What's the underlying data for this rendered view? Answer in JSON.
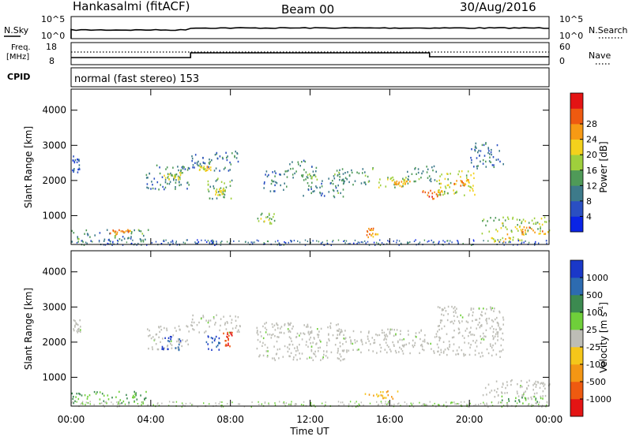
{
  "header": {
    "station": "Hankasalmi (fitACF)",
    "beam": "Beam 00",
    "date": "30/Aug/2016"
  },
  "status_panels": {
    "nsky_label": "N.Sky",
    "nsky_ticks": [
      "10^5",
      "10^0"
    ],
    "nsearch_label": "N.Search",
    "nsearch_ticks": [
      "10^5",
      "10^0"
    ],
    "freq_label_line1": "Freq.",
    "freq_label_line2": "[MHz]",
    "freq_ticks": [
      "18",
      "8"
    ],
    "nave_label": "Nave",
    "nave_ticks": [
      "60",
      "0"
    ],
    "cpid_label": "CPID",
    "cpid_text": "normal (fast stereo) 153"
  },
  "chart_data": [
    {
      "type": "heatmap",
      "name_on_chart": "Power [dB]",
      "xlabel": "Time UT",
      "ylabel": "Slant Range [km]",
      "x_ticks": [
        "00:00",
        "04:00",
        "08:00",
        "12:00",
        "16:00",
        "20:00",
        "00:00"
      ],
      "xlim_hours": [
        0,
        24
      ],
      "y_ticks": [
        1000,
        2000,
        3000,
        4000
      ],
      "ylim_km": [
        180,
        4600
      ],
      "colorbar": {
        "label": "Power [dB]",
        "ticks": [
          "4",
          "8",
          "12",
          "16",
          "20",
          "24",
          "28"
        ],
        "range": [
          0,
          30
        ],
        "colors": [
          "#0a24e6",
          "#2a4fc2",
          "#3d7a8a",
          "#4f9a58",
          "#9fcf3c",
          "#f3d11c",
          "#f79a14",
          "#ee5a10",
          "#e41414"
        ]
      },
      "echo_regions": [
        {
          "t0": 0.0,
          "t1": 3.9,
          "r0": 280,
          "r1": 620,
          "level": 10
        },
        {
          "t0": 1.8,
          "t1": 3.0,
          "r0": 480,
          "r1": 620,
          "level": 22
        },
        {
          "t0": 0.05,
          "t1": 0.45,
          "r0": 2250,
          "r1": 2750,
          "level": 4
        },
        {
          "t0": 3.7,
          "t1": 5.9,
          "r0": 1750,
          "r1": 2500,
          "level": 9
        },
        {
          "t0": 4.6,
          "t1": 5.6,
          "r0": 2050,
          "r1": 2250,
          "level": 16
        },
        {
          "t0": 5.9,
          "t1": 8.4,
          "r0": 2300,
          "r1": 2850,
          "level": 8
        },
        {
          "t0": 6.4,
          "t1": 7.0,
          "r0": 2300,
          "r1": 2450,
          "level": 18
        },
        {
          "t0": 6.8,
          "t1": 8.1,
          "r0": 1500,
          "r1": 2100,
          "level": 12
        },
        {
          "t0": 7.2,
          "t1": 7.8,
          "r0": 1600,
          "r1": 1800,
          "level": 16
        },
        {
          "t0": 9.3,
          "t1": 10.2,
          "r0": 800,
          "r1": 1100,
          "level": 14
        },
        {
          "t0": 9.6,
          "t1": 10.8,
          "r0": 1700,
          "r1": 2300,
          "level": 8
        },
        {
          "t0": 10.8,
          "t1": 12.3,
          "r0": 2050,
          "r1": 2600,
          "level": 10
        },
        {
          "t0": 11.6,
          "t1": 13.8,
          "r0": 1550,
          "r1": 2200,
          "level": 10
        },
        {
          "t0": 13.3,
          "t1": 15.2,
          "r0": 1900,
          "r1": 2400,
          "level": 10
        },
        {
          "t0": 14.7,
          "t1": 15.4,
          "r0": 400,
          "r1": 660,
          "level": 22
        },
        {
          "t0": 15.2,
          "t1": 17.0,
          "r0": 1800,
          "r1": 2150,
          "level": 14
        },
        {
          "t0": 16.2,
          "t1": 17.0,
          "r0": 1850,
          "r1": 2000,
          "level": 20
        },
        {
          "t0": 16.8,
          "t1": 18.4,
          "r0": 2000,
          "r1": 2450,
          "level": 10
        },
        {
          "t0": 17.4,
          "t1": 18.6,
          "r0": 1500,
          "r1": 1750,
          "level": 24
        },
        {
          "t0": 18.3,
          "t1": 20.3,
          "r0": 1600,
          "r1": 2300,
          "level": 16
        },
        {
          "t0": 19.2,
          "t1": 20.0,
          "r0": 1850,
          "r1": 2050,
          "level": 22
        },
        {
          "t0": 20.0,
          "t1": 21.7,
          "r0": 2350,
          "r1": 3100,
          "level": 8
        },
        {
          "t0": 20.6,
          "t1": 24.0,
          "r0": 500,
          "r1": 980,
          "level": 14
        },
        {
          "t0": 21.8,
          "t1": 24.0,
          "r0": 480,
          "r1": 700,
          "level": 22
        },
        {
          "t0": 21.0,
          "t1": 22.6,
          "r0": 280,
          "r1": 420,
          "level": 18
        }
      ]
    },
    {
      "type": "heatmap",
      "name_on_chart": "Velocity [m s^-1]",
      "xlabel": "Time UT",
      "ylabel": "Slant Range [km]",
      "x_ticks": [
        "00:00",
        "04:00",
        "08:00",
        "12:00",
        "16:00",
        "20:00",
        "00:00"
      ],
      "xlim_hours": [
        0,
        24
      ],
      "y_ticks": [
        1000,
        2000,
        3000,
        4000
      ],
      "ylim_km": [
        180,
        4600
      ],
      "colorbar": {
        "label": "Velocity [m s",
        "label_sup": "-1",
        "label_end": "]",
        "ticks": [
          "1000",
          "500",
          "100",
          "25",
          "-25",
          "-100",
          "-500",
          "-1000"
        ],
        "colors": [
          "#1a38c8",
          "#2d6bb0",
          "#3c8a50",
          "#6fcf3a",
          "#bdbdb6",
          "#f5c61a",
          "#f39614",
          "#ee5a10",
          "#e41414"
        ]
      },
      "echo_regions": [
        {
          "t0": 0.0,
          "t1": 3.9,
          "r0": 280,
          "r1": 620,
          "class": "green"
        },
        {
          "t0": 0.05,
          "t1": 0.45,
          "r0": 2300,
          "r1": 2650,
          "class": "gray"
        },
        {
          "t0": 3.8,
          "t1": 5.9,
          "r0": 1800,
          "r1": 2500,
          "class": "gray"
        },
        {
          "t0": 4.5,
          "t1": 5.5,
          "r0": 1800,
          "r1": 2200,
          "class": "blue"
        },
        {
          "t0": 5.9,
          "t1": 8.5,
          "r0": 2300,
          "r1": 2800,
          "class": "gray"
        },
        {
          "t0": 6.7,
          "t1": 7.5,
          "r0": 1800,
          "r1": 2200,
          "class": "blue"
        },
        {
          "t0": 7.6,
          "t1": 8.1,
          "r0": 1900,
          "r1": 2300,
          "class": "red"
        },
        {
          "t0": 9.3,
          "t1": 13.8,
          "r0": 1500,
          "r1": 2600,
          "class": "gray"
        },
        {
          "t0": 13.3,
          "t1": 18.6,
          "r0": 1700,
          "r1": 2400,
          "class": "gray"
        },
        {
          "t0": 14.7,
          "t1": 16.4,
          "r0": 400,
          "r1": 650,
          "class": "orange"
        },
        {
          "t0": 18.3,
          "t1": 21.7,
          "r0": 1600,
          "r1": 3050,
          "class": "gray"
        },
        {
          "t0": 20.6,
          "t1": 24.0,
          "r0": 400,
          "r1": 950,
          "class": "gray"
        },
        {
          "t0": 21.6,
          "t1": 24.0,
          "r0": 280,
          "r1": 480,
          "class": "green"
        }
      ]
    }
  ]
}
